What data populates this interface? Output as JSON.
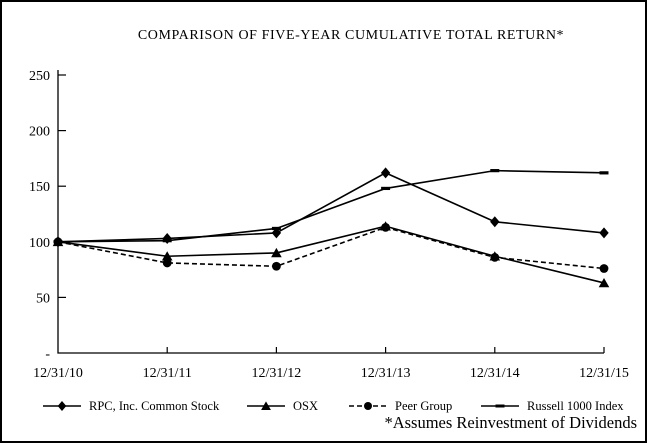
{
  "chart_data": {
    "type": "line",
    "title": "COMPARISON OF FIVE-YEAR CUMULATIVE TOTAL RETURN*",
    "footnote": "*Assumes Reinvestment of Dividends",
    "categories": [
      "12/31/10",
      "12/31/11",
      "12/31/12",
      "12/31/13",
      "12/31/14",
      "12/31/15"
    ],
    "y_ticks": [
      0,
      50,
      100,
      150,
      200,
      250
    ],
    "y_tick_labels": [
      "-",
      "50",
      "100",
      "150",
      "200",
      "250"
    ],
    "ylim": [
      0,
      250
    ],
    "grid": false,
    "legend_position": "bottom",
    "series": [
      {
        "name": "RPC, Inc. Common Stock",
        "marker": "diamond",
        "line": "solid",
        "values": [
          100,
          103,
          108,
          162,
          118,
          108
        ]
      },
      {
        "name": "OSX",
        "marker": "triangle",
        "line": "solid",
        "values": [
          100,
          87,
          90,
          114,
          87,
          63
        ]
      },
      {
        "name": "Peer Group",
        "marker": "circle",
        "line": "dashed",
        "values": [
          100,
          81,
          78,
          113,
          86,
          76
        ]
      },
      {
        "name": "Russell 1000 Index",
        "marker": "dash",
        "line": "solid",
        "values": [
          100,
          101,
          112,
          148,
          164,
          162
        ]
      }
    ],
    "colors": {
      "line": "#000000",
      "background": "#ffffff",
      "border": "#000000"
    }
  }
}
